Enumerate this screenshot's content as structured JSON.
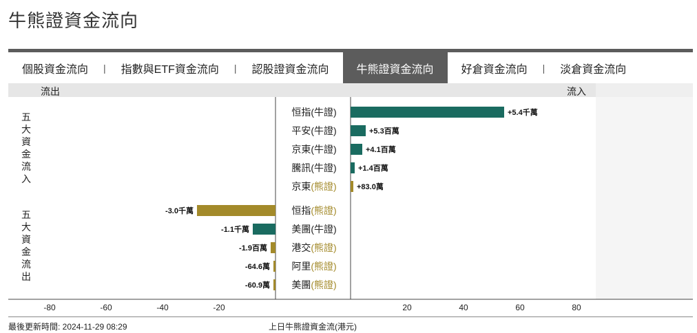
{
  "page": {
    "title": "牛熊證資金流向"
  },
  "tabs": [
    {
      "label": "個股資金流向",
      "active": false
    },
    {
      "label": "指數與ETF資金流向",
      "active": false
    },
    {
      "label": "認股證資金流向",
      "active": false
    },
    {
      "label": "牛熊證資金流向",
      "active": true
    },
    {
      "label": "好倉資金流向",
      "active": false
    },
    {
      "label": "淡倉資金流向",
      "active": false
    }
  ],
  "tab_separator": "|",
  "header": {
    "outflow_label": "流出",
    "inflow_label": "流入"
  },
  "section_labels": {
    "top": "五大資金流入",
    "bottom": "五大資金流出"
  },
  "footer": {
    "last_update": "最後更新時間: 2024-11-29 08:29",
    "caption": "上日牛熊證資金流(港元)"
  },
  "colors": {
    "bull": "#1a6b60",
    "bear": "#a38a2a",
    "bull_text": "#1a6b60",
    "bear_text": "#a38a2a"
  },
  "chart_data": {
    "type": "bar",
    "orientation": "horizontal-diverging",
    "xlim": [
      -100,
      100
    ],
    "ticks": [
      -80,
      -60,
      -40,
      -20,
      20,
      40,
      60,
      80
    ],
    "units_note": "百萬",
    "categories_top": [
      {
        "name": "恒指",
        "kind": "牛證",
        "value": 5400,
        "label": "+5.4千萬"
      },
      {
        "name": "平安",
        "kind": "牛證",
        "value": 530,
        "label": "+5.3百萬"
      },
      {
        "name": "京東",
        "kind": "牛證",
        "value": 410,
        "label": "+4.1百萬"
      },
      {
        "name": "騰訊",
        "kind": "牛證",
        "value": 140,
        "label": "+1.4百萬"
      },
      {
        "name": "京東",
        "kind": "熊證",
        "value": 83,
        "label": "+83.0萬"
      }
    ],
    "categories_bottom": [
      {
        "name": "恒指",
        "kind": "熊證",
        "value": -3000,
        "label": "-3.0千萬"
      },
      {
        "name": "美團",
        "kind": "牛證",
        "value": -1100,
        "label": "-1.1千萬"
      },
      {
        "name": "港交",
        "kind": "熊證",
        "value": -190,
        "label": "-1.9百萬"
      },
      {
        "name": "阿里",
        "kind": "熊證",
        "value": -64.6,
        "label": "-64.6萬"
      },
      {
        "name": "美團",
        "kind": "熊證",
        "value": -60.9,
        "label": "-60.9萬"
      }
    ]
  }
}
